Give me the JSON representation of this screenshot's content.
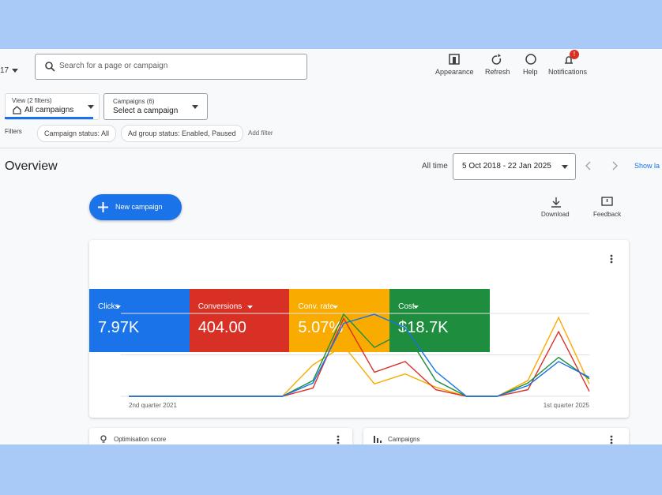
{
  "top_bar": {
    "account": "17",
    "search_placeholder": "Search for a page or campaign",
    "actions": [
      "Appearance",
      "Refresh",
      "Help",
      "Notifications"
    ],
    "notification_badge": "!"
  },
  "filters": {
    "view_label": "View (2 filters)",
    "view_value": "All campaigns",
    "campaigns_label": "Campaigns (6)",
    "campaigns_value": "Select a campaign",
    "filters_label": "Filters",
    "chips": [
      "Campaign status: All",
      "Ad group status: Enabled, Paused"
    ],
    "add_filter": "Add filter"
  },
  "overview": {
    "title": "Overview",
    "range_label": "All time",
    "date_range": "5 Oct 2018 - 22 Jan 2025",
    "show_link": "Show la",
    "new_campaign": "New campaign",
    "download": "Download",
    "feedback": "Feedback"
  },
  "chart_data": {
    "type": "line",
    "categories": [
      "2nd quarter 2021",
      null,
      null,
      null,
      null,
      null,
      null,
      null,
      null,
      null,
      null,
      null,
      null,
      null,
      null,
      "1st quarter 2025"
    ],
    "ylim": [
      0,
      100
    ],
    "series": [
      {
        "name": "Clicks",
        "total": "7.97K",
        "color": "#1a73e8",
        "values": [
          0,
          0,
          0,
          0,
          0,
          0,
          16,
          88,
          99,
          83,
          30,
          0,
          0,
          13,
          42,
          23
        ]
      },
      {
        "name": "Conversions",
        "total": "404.00",
        "color": "#d93025",
        "values": [
          0,
          0,
          0,
          0,
          0,
          0,
          10,
          94,
          29,
          42,
          8,
          0,
          0,
          8,
          78,
          6
        ]
      },
      {
        "name": "Conv. rate",
        "total": "5.07%",
        "color": "#f9ab00",
        "values": [
          0,
          0,
          0,
          0,
          0,
          0,
          38,
          61,
          15,
          27,
          11,
          0,
          0,
          19,
          95,
          15
        ]
      },
      {
        "name": "Cost",
        "total": "$18.7K",
        "color": "#1e8e3e",
        "values": [
          0,
          0,
          0,
          0,
          0,
          0,
          19,
          99,
          59,
          78,
          19,
          0,
          0,
          16,
          47,
          21
        ]
      }
    ]
  },
  "cards": [
    "Optimisation score",
    "Campaigns"
  ]
}
